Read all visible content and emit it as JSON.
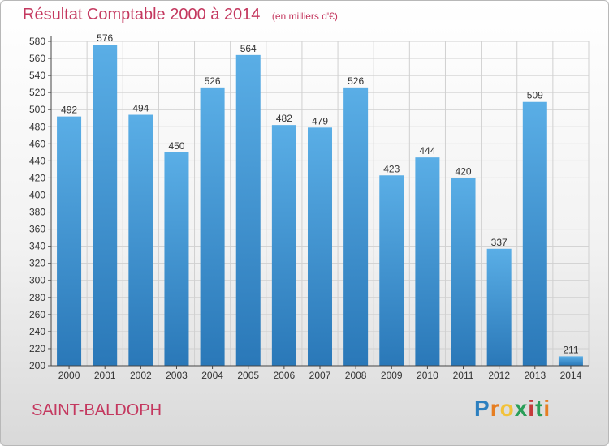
{
  "header": {
    "title": "Résultat Comptable 2000 à 2014",
    "unit": "(en milliers d'€)"
  },
  "footer": {
    "commune": "SAINT-BALDOPH",
    "logo": "Proxiti"
  },
  "colors": {
    "title": "#c4385f",
    "bar_top": "#5aaee6",
    "bar_bottom": "#2a78b8",
    "grid": "#d0d0d0"
  },
  "chart_data": {
    "type": "bar",
    "title": "Résultat Comptable 2000 à 2014",
    "subtitle": "(en milliers d'€)",
    "xlabel": "",
    "ylabel": "",
    "categories": [
      "2000",
      "2001",
      "2002",
      "2003",
      "2004",
      "2005",
      "2006",
      "2007",
      "2008",
      "2009",
      "2010",
      "2011",
      "2012",
      "2013",
      "2014"
    ],
    "values": [
      492,
      576,
      494,
      450,
      526,
      564,
      482,
      479,
      526,
      423,
      444,
      420,
      337,
      509,
      211
    ],
    "ylim": [
      200,
      580
    ],
    "ytick_step": 20,
    "grid": true,
    "legend": "none"
  }
}
